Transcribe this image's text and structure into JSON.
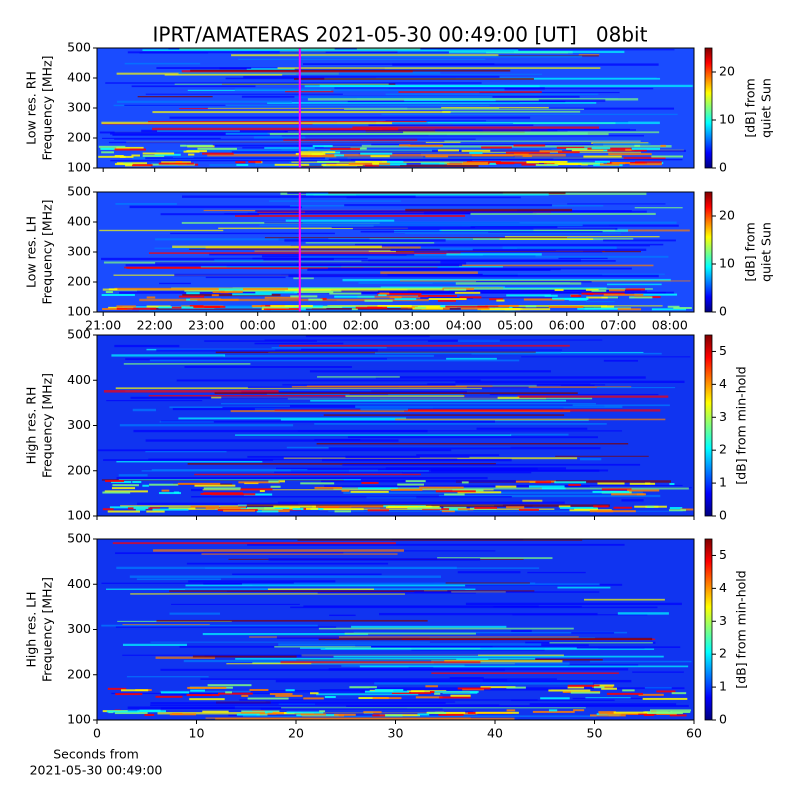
{
  "chart_data": [
    {
      "type": "heatmap",
      "title": "IPRT/AMATERAS 2021-05-30 00:49:00 [UT]   08bit",
      "ylabel": [
        "Low res. RH",
        "Frequency [MHz]"
      ],
      "xlim": [
        20.88,
        32.47
      ],
      "ylim": [
        100,
        500
      ],
      "yticks": [
        100,
        200,
        300,
        400,
        500
      ],
      "marker_x": 24.817,
      "marker_color": "#ff00ff",
      "colorbar_label": [
        "[dB] from",
        "quiet Sun"
      ],
      "clim": [
        0,
        25
      ],
      "cticks": [
        0,
        10,
        20
      ],
      "colormap": [
        "#00007f",
        "#0000ff",
        "#007fff",
        "#00ffff",
        "#7fff7f",
        "#ffff00",
        "#ff7f00",
        "#ff0000",
        "#7f0000"
      ]
    },
    {
      "type": "heatmap",
      "ylabel": [
        "Low res. LH",
        "Frequency [MHz]"
      ],
      "xlim": [
        20.88,
        32.47
      ],
      "ylim": [
        100,
        500
      ],
      "yticks": [
        100,
        200,
        300,
        400,
        500
      ],
      "xticks": [
        {
          "value": 21,
          "label": "21:00"
        },
        {
          "value": 22,
          "label": "22:00"
        },
        {
          "value": 23,
          "label": "23:00"
        },
        {
          "value": 24,
          "label": "00:00"
        },
        {
          "value": 25,
          "label": "01:00"
        },
        {
          "value": 26,
          "label": "02:00"
        },
        {
          "value": 27,
          "label": "03:00"
        },
        {
          "value": 28,
          "label": "04:00"
        },
        {
          "value": 29,
          "label": "05:00"
        },
        {
          "value": 30,
          "label": "06:00"
        },
        {
          "value": 31,
          "label": "07:00"
        },
        {
          "value": 32,
          "label": "08:00"
        }
      ],
      "marker_x": 24.817,
      "marker_color": "#ff00ff",
      "colorbar_label": [
        "[dB] from",
        "quiet Sun"
      ],
      "clim": [
        0,
        25
      ],
      "cticks": [
        0,
        10,
        20
      ],
      "colormap": [
        "#00007f",
        "#0000ff",
        "#007fff",
        "#00ffff",
        "#7fff7f",
        "#ffff00",
        "#ff7f00",
        "#ff0000",
        "#7f0000"
      ]
    },
    {
      "type": "heatmap",
      "ylabel": [
        "High res. RH",
        "Frequency [MHz]"
      ],
      "xlim": [
        0,
        60
      ],
      "ylim": [
        100,
        500
      ],
      "yticks": [
        100,
        200,
        300,
        400,
        500
      ],
      "colorbar_label": [
        "[dB] from min-hold"
      ],
      "clim": [
        0,
        5.5
      ],
      "cticks": [
        0,
        1,
        2,
        3,
        4,
        5
      ],
      "colormap": [
        "#00007f",
        "#0000ff",
        "#007fff",
        "#00ffff",
        "#7fff7f",
        "#ffff00",
        "#ff7f00",
        "#ff0000",
        "#7f0000"
      ]
    },
    {
      "type": "heatmap",
      "ylabel": [
        "High res. LH",
        "Frequency [MHz]"
      ],
      "xlabel": [
        "Seconds from",
        "2021-05-30 00:49:00"
      ],
      "xlim": [
        0,
        60
      ],
      "ylim": [
        100,
        500
      ],
      "yticks": [
        100,
        200,
        300,
        400,
        500
      ],
      "xticks": [
        0,
        10,
        20,
        30,
        40,
        50,
        60
      ],
      "colorbar_label": [
        "[dB] from min-hold"
      ],
      "clim": [
        0,
        5.5
      ],
      "cticks": [
        0,
        1,
        2,
        3,
        4,
        5
      ],
      "colormap": [
        "#00007f",
        "#0000ff",
        "#007fff",
        "#00ffff",
        "#7fff7f",
        "#ffff00",
        "#ff7f00",
        "#ff0000",
        "#7f0000"
      ]
    }
  ]
}
